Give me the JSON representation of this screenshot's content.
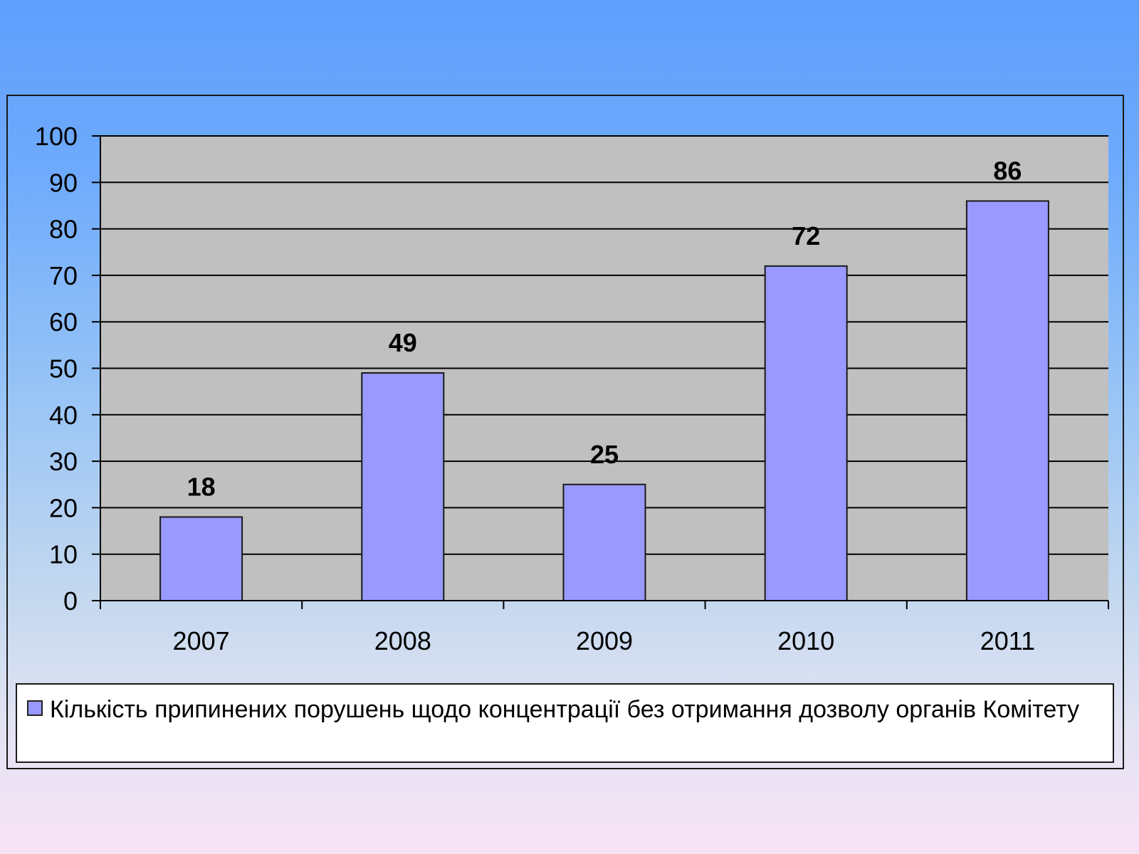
{
  "colors": {
    "plot_area": "#c0c0c0",
    "bar_fill": "#9999ff",
    "bar_stroke": "#1a1a1a",
    "gridline": "#000000"
  },
  "chart_data": {
    "type": "bar",
    "categories": [
      "2007",
      "2008",
      "2009",
      "2010",
      "2011"
    ],
    "series": [
      {
        "name": "Кількість припинених порушень щодо концентрації без отримання дозволу органів Комітету",
        "values": [
          18,
          49,
          25,
          72,
          86
        ]
      }
    ],
    "data_labels": [
      "18",
      "49",
      "25",
      "72",
      "86"
    ],
    "y_ticks": [
      "0",
      "10",
      "20",
      "30",
      "40",
      "50",
      "60",
      "70",
      "80",
      "90",
      "100"
    ],
    "ylim": [
      0,
      100
    ],
    "grid": true,
    "legend_position": "bottom",
    "title": "",
    "xlabel": "",
    "ylabel": ""
  },
  "legend": {
    "label": "Кількість припинених порушень щодо концентрації без отримання дозволу органів Комітету"
  }
}
